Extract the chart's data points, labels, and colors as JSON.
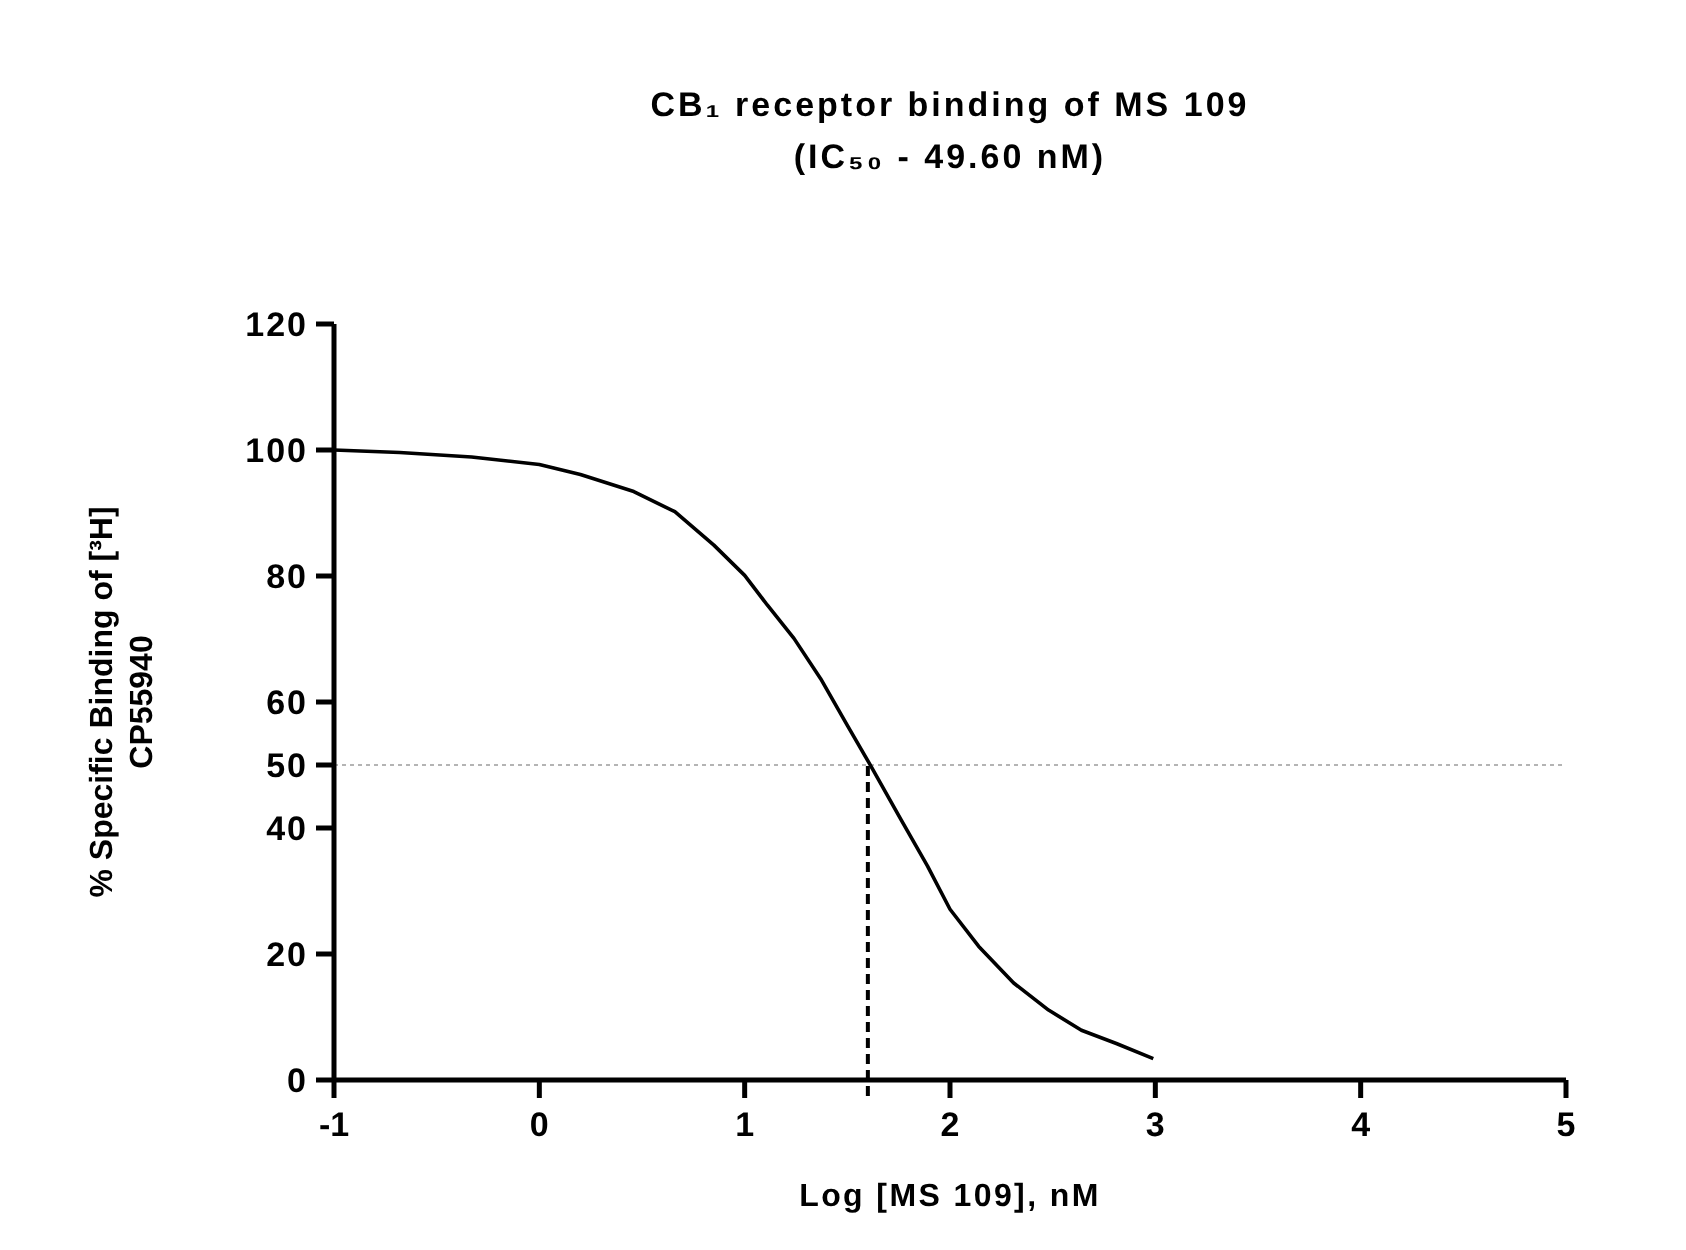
{
  "chart_data": {
    "type": "line",
    "title": "CB₁ receptor binding of MS 109",
    "subtitle": "(IC₅₀ - 49.60 nM)",
    "xlabel": "Log [MS 109], nM",
    "ylabel": "% Specific Binding of [³H] CP55940",
    "x": [
      -1,
      -0.68,
      -0.33,
      0,
      0.2,
      0.46,
      0.66,
      0.85,
      1,
      1.11,
      1.24,
      1.37,
      1.5,
      1.61,
      1.76,
      1.89,
      2,
      2.14,
      2.31,
      2.48,
      2.64,
      2.81,
      2.99
    ],
    "series": [
      {
        "color": "#000000",
        "values": [
          100,
          99.6,
          98.9,
          97.7,
          96.1,
          93.4,
          90.2,
          84.9,
          80.1,
          75.4,
          70.1,
          63.7,
          56.3,
          50.1,
          41.4,
          34,
          27.1,
          21.2,
          15.4,
          11.1,
          7.9,
          5.8,
          3.4
        ]
      }
    ],
    "xlim": [
      -1,
      5
    ],
    "xticks": [
      -1,
      0,
      1,
      2,
      3,
      4,
      5
    ],
    "ylim": [
      0,
      120
    ],
    "yticks": [
      0,
      20,
      40,
      50,
      60,
      80,
      100,
      120
    ],
    "ref_lines": [
      {
        "axis": "y",
        "value": 50,
        "color": "#b4b4b4",
        "line_style": "dotted"
      },
      {
        "axis": "x",
        "value": 1.6,
        "color": "#000000",
        "line_style": "dashed"
      }
    ],
    "grid": false,
    "marker": "none",
    "line_style": "solid"
  }
}
